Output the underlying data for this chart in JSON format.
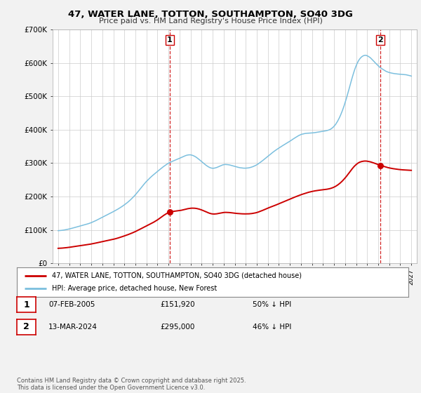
{
  "title": "47, WATER LANE, TOTTON, SOUTHAMPTON, SO40 3DG",
  "subtitle": "Price paid vs. HM Land Registry's House Price Index (HPI)",
  "hpi_color": "#7bbfde",
  "property_color": "#cc0000",
  "vline_color": "#cc0000",
  "background_color": "#f2f2f2",
  "plot_bg_color": "#ffffff",
  "grid_color": "#cccccc",
  "ylim": [
    0,
    700000
  ],
  "xlim_start": 1994.5,
  "xlim_end": 2027.5,
  "ytick_labels": [
    "£0",
    "£100K",
    "£200K",
    "£300K",
    "£400K",
    "£500K",
    "£600K",
    "£700K"
  ],
  "ytick_values": [
    0,
    100000,
    200000,
    300000,
    400000,
    500000,
    600000,
    700000
  ],
  "transaction1": {
    "label": "1",
    "date_str": "07-FEB-2005",
    "date_num": 2005.1,
    "price": 151920,
    "pct": "50% ↓ HPI"
  },
  "transaction2": {
    "label": "2",
    "date_str": "13-MAR-2024",
    "date_num": 2024.2,
    "price": 295000,
    "pct": "46% ↓ HPI"
  },
  "legend_line1": "47, WATER LANE, TOTTON, SOUTHAMPTON, SO40 3DG (detached house)",
  "legend_line2": "HPI: Average price, detached house, New Forest",
  "footer": "Contains HM Land Registry data © Crown copyright and database right 2025.\nThis data is licensed under the Open Government Licence v3.0."
}
